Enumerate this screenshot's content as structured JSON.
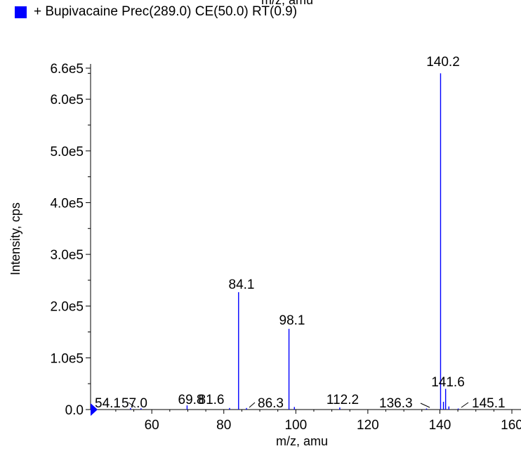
{
  "header": {
    "cut_xlabel": "m/z, amu"
  },
  "legend": {
    "entry": "+ Bupivacaine Prec(289.0) CE(50.0) RT(0.9)",
    "color": "#0000ff"
  },
  "chart_data": {
    "type": "bar",
    "xlabel": "m/z, amu",
    "ylabel": "Intensity, cps",
    "xlim": [
      43,
      160
    ],
    "ylim": [
      0,
      660000
    ],
    "x_ticks": [
      60,
      80,
      100,
      120,
      140,
      160
    ],
    "x_tick_labels": [
      "60",
      "80",
      "100",
      "120",
      "140",
      "160"
    ],
    "y_ticks": [
      0,
      100000,
      200000,
      300000,
      400000,
      500000,
      600000,
      660000
    ],
    "y_tick_labels": [
      "0.0",
      "1.0e5",
      "2.0e5",
      "3.0e5",
      "4.0e5",
      "5.0e5",
      "6.0e5",
      "6.6e5"
    ],
    "series": [
      {
        "color": "#0000ff",
        "peaks": [
          {
            "mz": 54.1,
            "intensity": 3000,
            "label": "54.1"
          },
          {
            "mz": 57.0,
            "intensity": 2500,
            "label": "57.0"
          },
          {
            "mz": 69.8,
            "intensity": 8000,
            "label": "69.8"
          },
          {
            "mz": 81.6,
            "intensity": 3000,
            "label": "81.6"
          },
          {
            "mz": 84.1,
            "intensity": 227000,
            "label": "84.1"
          },
          {
            "mz": 86.3,
            "intensity": 3000,
            "label": "86.3"
          },
          {
            "mz": 98.1,
            "intensity": 156000,
            "label": "98.1"
          },
          {
            "mz": 99.6,
            "intensity": 5000,
            "label": ""
          },
          {
            "mz": 112.2,
            "intensity": 4000,
            "label": "112.2"
          },
          {
            "mz": 136.3,
            "intensity": 2000,
            "label": "136.3"
          },
          {
            "mz": 140.2,
            "intensity": 650000,
            "label": "140.2"
          },
          {
            "mz": 141.0,
            "intensity": 15000,
            "label": ""
          },
          {
            "mz": 141.6,
            "intensity": 40000,
            "label": "141.6"
          },
          {
            "mz": 142.5,
            "intensity": 6000,
            "label": ""
          },
          {
            "mz": 145.1,
            "intensity": 2000,
            "label": "145.1"
          }
        ]
      }
    ]
  }
}
